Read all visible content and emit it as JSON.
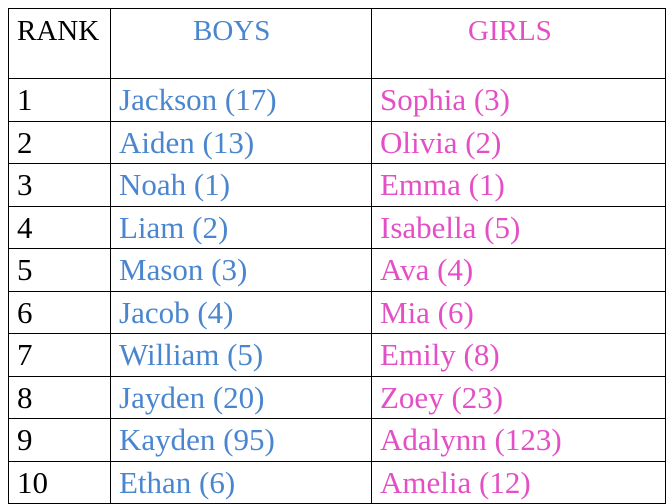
{
  "table": {
    "header": [
      "RANK",
      "BOYS",
      "GIRLS"
    ],
    "rows": [
      [
        "1",
        "Jackson (17)",
        "Sophia (3)"
      ],
      [
        "2",
        "Aiden (13)",
        "Olivia (2)"
      ],
      [
        "3",
        "Noah (1)",
        "Emma (1)"
      ],
      [
        "4",
        "Liam (2)",
        "Isabella (5)"
      ],
      [
        "5",
        "Mason (3)",
        "Ava (4)"
      ],
      [
        "6",
        "Jacob (4)",
        "Mia (6)"
      ],
      [
        "7",
        "William (5)",
        "Emily (8)"
      ],
      [
        "8",
        "Jayden (20)",
        "Zoey (23)"
      ],
      [
        "9",
        "Kayden (95)",
        "Adalynn (123)"
      ],
      [
        "10",
        "Ethan (6)",
        "Amelia (12)"
      ]
    ]
  }
}
